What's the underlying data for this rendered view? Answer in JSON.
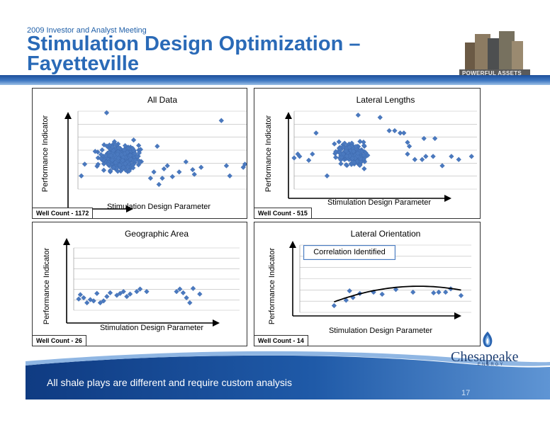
{
  "header": {
    "meeting": "2009 Investor and Analyst Meeting",
    "title": "Stimulation Design Optimization – Fayetteville",
    "badge": "POWERFUL ASSETS"
  },
  "footer": {
    "tagline": "All shale plays are different and require custom analysis",
    "page_number": "17",
    "logo_name": "Chesapeake",
    "logo_sub": "ENERGY"
  },
  "annotation": "Correlation Identified",
  "colors": {
    "marker": "#4a79bf",
    "band": "#1d4f9a",
    "trend": "#000000"
  },
  "chart_data": [
    {
      "type": "scatter",
      "title": "All Data",
      "xlabel": "Stimulation Design Parameter",
      "ylabel": "Performance Indicator",
      "footer": "Well Count - 1172",
      "well_count": 1172,
      "grid": true,
      "xlim": [
        0,
        100
      ],
      "ylim": [
        0,
        100
      ],
      "outliers": [
        [
          2,
          17
        ],
        [
          4,
          32
        ],
        [
          17,
          98
        ],
        [
          33,
          63
        ],
        [
          36,
          50
        ],
        [
          36,
          56
        ],
        [
          37,
          35
        ],
        [
          43,
          14
        ],
        [
          45,
          22
        ],
        [
          47,
          55
        ],
        [
          48,
          6
        ],
        [
          50,
          14
        ],
        [
          51,
          26
        ],
        [
          53,
          30
        ],
        [
          56,
          16
        ],
        [
          60,
          22
        ],
        [
          64,
          35
        ],
        [
          68,
          25
        ],
        [
          69,
          19
        ],
        [
          73,
          28
        ],
        [
          85,
          88
        ],
        [
          88,
          30
        ],
        [
          90,
          17
        ],
        [
          98,
          28
        ],
        [
          99,
          32
        ]
      ],
      "cluster": {
        "center": [
          25,
          40
        ],
        "spread": [
          12,
          18
        ],
        "count": 340,
        "x_range": [
          0,
          46
        ],
        "y_range": [
          2,
          95
        ]
      }
    },
    {
      "type": "scatter",
      "title": "Lateral Lengths",
      "xlabel": "Stimulation Design Parameter",
      "ylabel": "Performance Indicator",
      "footer": "Well Count - 515",
      "well_count": 515,
      "grid": true,
      "xlim": [
        0,
        100
      ],
      "ylim": [
        0,
        100
      ],
      "outliers": [
        [
          0,
          40
        ],
        [
          2,
          45
        ],
        [
          3,
          42
        ],
        [
          8,
          37
        ],
        [
          10,
          45
        ],
        [
          12,
          72
        ],
        [
          18,
          17
        ],
        [
          35,
          95
        ],
        [
          47,
          92
        ],
        [
          52,
          75
        ],
        [
          55,
          75
        ],
        [
          58,
          72
        ],
        [
          60,
          72
        ],
        [
          62,
          60
        ],
        [
          62,
          45
        ],
        [
          63,
          55
        ],
        [
          66,
          38
        ],
        [
          70,
          38
        ],
        [
          71,
          65
        ],
        [
          72,
          42
        ],
        [
          76,
          42
        ],
        [
          77,
          65
        ],
        [
          81,
          30
        ],
        [
          86,
          42
        ],
        [
          90,
          38
        ],
        [
          97,
          42
        ]
      ],
      "cluster": {
        "center": [
          32,
          45
        ],
        "spread": [
          10,
          14
        ],
        "count": 200,
        "x_range": [
          14,
          62
        ],
        "y_range": [
          12,
          95
        ]
      }
    },
    {
      "type": "scatter",
      "title": "Geographic Area",
      "xlabel": "Stimulation Design Parameter",
      "ylabel": "Performance Indicator",
      "footer": "Well Count - 26",
      "well_count": 26,
      "grid": true,
      "xlim": [
        0,
        100
      ],
      "ylim": [
        0,
        100
      ],
      "points": [
        [
          3,
          18
        ],
        [
          4,
          25
        ],
        [
          6,
          20
        ],
        [
          8,
          12
        ],
        [
          10,
          17
        ],
        [
          12,
          15
        ],
        [
          14,
          27
        ],
        [
          16,
          12
        ],
        [
          18,
          15
        ],
        [
          20,
          22
        ],
        [
          22,
          28
        ],
        [
          26,
          24
        ],
        [
          28,
          27
        ],
        [
          30,
          30
        ],
        [
          32,
          22
        ],
        [
          34,
          26
        ],
        [
          38,
          30
        ],
        [
          40,
          34
        ],
        [
          44,
          30
        ],
        [
          62,
          30
        ],
        [
          64,
          34
        ],
        [
          66,
          28
        ],
        [
          68,
          20
        ],
        [
          70,
          12
        ],
        [
          72,
          35
        ],
        [
          76,
          26
        ]
      ]
    },
    {
      "type": "scatter",
      "title": "Lateral Orientation",
      "xlabel": "Stimulation Design Parameter",
      "ylabel": "Performance Indicator",
      "footer": "Well Count - 14",
      "well_count": 14,
      "grid": true,
      "xlim": [
        0,
        100
      ],
      "ylim": [
        0,
        100
      ],
      "points": [
        [
          20,
          10
        ],
        [
          27,
          18
        ],
        [
          29,
          32
        ],
        [
          31,
          22
        ],
        [
          35,
          28
        ],
        [
          43,
          30
        ],
        [
          48,
          27
        ],
        [
          56,
          34
        ],
        [
          66,
          30
        ],
        [
          78,
          29
        ],
        [
          81,
          30
        ],
        [
          85,
          30
        ],
        [
          88,
          35
        ],
        [
          94,
          25
        ]
      ],
      "trendline": {
        "type": "quadratic",
        "from": 20,
        "to": 94,
        "coeffs": [
          -0.0095,
          1.32,
          -7.0
        ]
      },
      "annotation": "Correlation Identified"
    }
  ]
}
